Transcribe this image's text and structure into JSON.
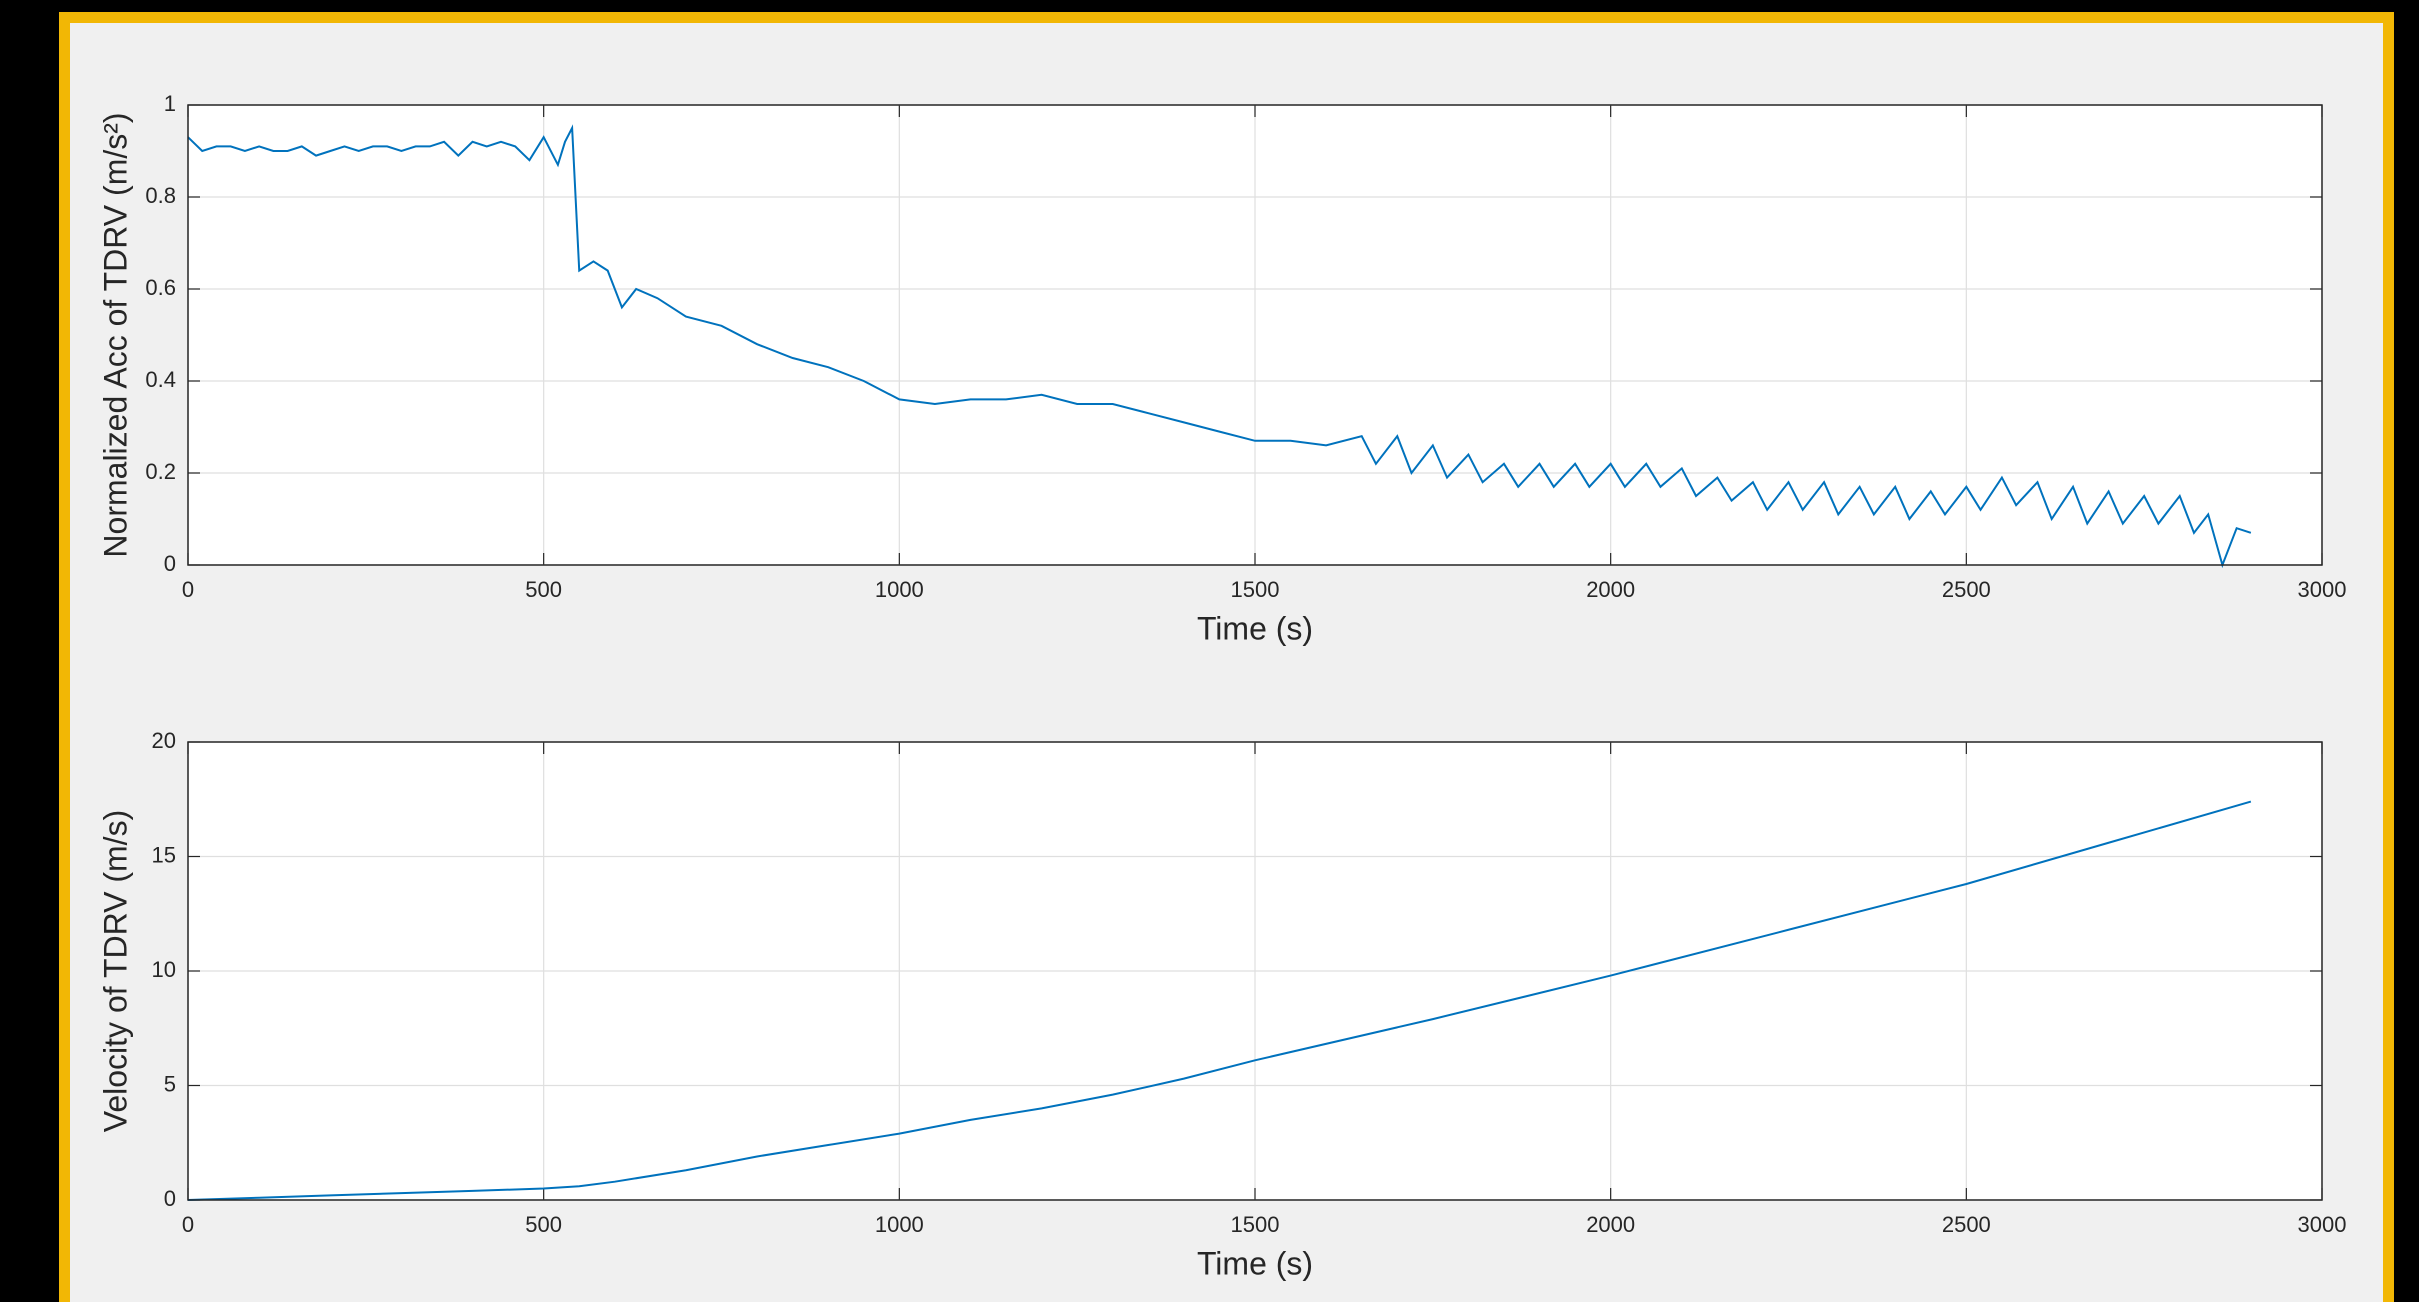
{
  "chart_data": [
    {
      "type": "line",
      "xlabel": "Time (s)",
      "ylabel": "Normalized Acc of TDRV (m/s²)",
      "x": [
        0,
        20,
        40,
        60,
        80,
        100,
        120,
        140,
        160,
        180,
        200,
        220,
        240,
        260,
        280,
        300,
        320,
        340,
        360,
        380,
        400,
        420,
        440,
        460,
        480,
        500,
        520,
        530,
        540,
        550,
        570,
        590,
        610,
        630,
        660,
        700,
        750,
        800,
        850,
        900,
        950,
        1000,
        1050,
        1100,
        1150,
        1200,
        1250,
        1300,
        1350,
        1400,
        1450,
        1500,
        1550,
        1600,
        1650,
        1670,
        1700,
        1720,
        1750,
        1770,
        1800,
        1820,
        1850,
        1870,
        1900,
        1920,
        1950,
        1970,
        2000,
        2020,
        2050,
        2070,
        2100,
        2120,
        2150,
        2170,
        2200,
        2220,
        2250,
        2270,
        2300,
        2320,
        2350,
        2370,
        2400,
        2420,
        2450,
        2470,
        2500,
        2520,
        2550,
        2570,
        2600,
        2620,
        2650,
        2670,
        2700,
        2720,
        2750,
        2770,
        2800,
        2820,
        2840,
        2860,
        2880,
        2900
      ],
      "series": [
        {
          "color": "#0072bd",
          "values": [
            0.93,
            0.9,
            0.91,
            0.91,
            0.9,
            0.91,
            0.9,
            0.9,
            0.91,
            0.89,
            0.9,
            0.91,
            0.9,
            0.91,
            0.91,
            0.9,
            0.91,
            0.91,
            0.92,
            0.89,
            0.92,
            0.91,
            0.92,
            0.91,
            0.88,
            0.93,
            0.87,
            0.92,
            0.95,
            0.64,
            0.66,
            0.64,
            0.56,
            0.6,
            0.58,
            0.54,
            0.52,
            0.48,
            0.45,
            0.43,
            0.4,
            0.36,
            0.35,
            0.36,
            0.36,
            0.37,
            0.35,
            0.35,
            0.33,
            0.31,
            0.29,
            0.27,
            0.27,
            0.26,
            0.28,
            0.22,
            0.28,
            0.2,
            0.26,
            0.19,
            0.24,
            0.18,
            0.22,
            0.17,
            0.22,
            0.17,
            0.22,
            0.17,
            0.22,
            0.17,
            0.22,
            0.17,
            0.21,
            0.15,
            0.19,
            0.14,
            0.18,
            0.12,
            0.18,
            0.12,
            0.18,
            0.11,
            0.17,
            0.11,
            0.17,
            0.1,
            0.16,
            0.11,
            0.17,
            0.12,
            0.19,
            0.13,
            0.18,
            0.1,
            0.17,
            0.09,
            0.16,
            0.09,
            0.15,
            0.09,
            0.15,
            0.07,
            0.11,
            0.0,
            0.08,
            0.07
          ]
        }
      ],
      "xlim": [
        0,
        3000
      ],
      "xticks": [
        0,
        500,
        1000,
        1500,
        2000,
        2500,
        3000
      ],
      "ylim": [
        0,
        1
      ],
      "yticks": [
        0,
        0.2,
        0.4,
        0.6,
        0.8,
        1
      ],
      "grid": true
    },
    {
      "type": "line",
      "xlabel": "Time (s)",
      "ylabel": "Velocity of TDRV (m/s)",
      "x": [
        0,
        100,
        200,
        300,
        400,
        500,
        550,
        600,
        700,
        800,
        900,
        1000,
        1100,
        1200,
        1300,
        1400,
        1500,
        1750,
        2000,
        2250,
        2500,
        2700,
        2900
      ],
      "series": [
        {
          "color": "#0072bd",
          "values": [
            0,
            0.1,
            0.2,
            0.3,
            0.4,
            0.5,
            0.6,
            0.8,
            1.3,
            1.9,
            2.4,
            2.9,
            3.5,
            4.0,
            4.6,
            5.3,
            6.1,
            7.9,
            9.8,
            11.8,
            13.8,
            15.6,
            17.4
          ]
        }
      ],
      "xlim": [
        0,
        3000
      ],
      "xticks": [
        0,
        500,
        1000,
        1500,
        2000,
        2500,
        3000
      ],
      "ylim": [
        0,
        20
      ],
      "yticks": [
        0,
        5,
        10,
        15,
        20
      ],
      "grid": true
    }
  ]
}
